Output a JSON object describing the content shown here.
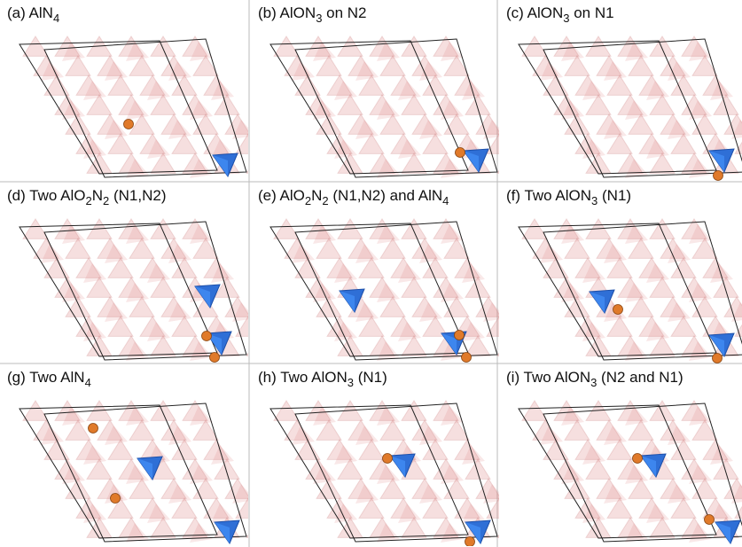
{
  "panels": [
    {
      "label": [
        "(a) AlN",
        "4"
      ]
    },
    {
      "label": [
        "(b) AlON",
        "3",
        " on N2"
      ]
    },
    {
      "label": [
        "(c) AlON",
        "3",
        " on N1"
      ]
    },
    {
      "label": [
        "(d) Two AlO",
        "2",
        "N",
        "2",
        " (N1,N2)"
      ]
    },
    {
      "label": [
        "(e) AlO",
        "2",
        "N",
        "2",
        " (N1,N2) and AlN",
        "4"
      ]
    },
    {
      "label": [
        "(f) Two AlON",
        "3",
        " (N1)"
      ]
    },
    {
      "label": [
        "(g) Two AlN",
        "4"
      ]
    },
    {
      "label": [
        "(h) Two AlON",
        "3",
        " (N1)"
      ]
    },
    {
      "label": [
        "(i) Two AlON",
        "3",
        " (N2 and N1)"
      ]
    }
  ]
}
